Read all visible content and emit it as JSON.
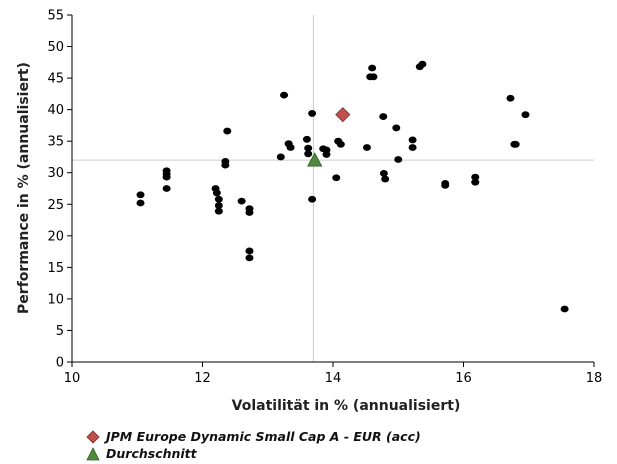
{
  "chart_data": {
    "type": "scatter",
    "xlabel": "Volatilität in % (annualisiert)",
    "ylabel": "Performance in % (annualisiert)",
    "xlim": [
      10,
      18
    ],
    "ylim": [
      0,
      55
    ],
    "xticks": [
      10,
      12,
      14,
      16,
      18
    ],
    "yticks": [
      0,
      5,
      10,
      15,
      20,
      25,
      30,
      35,
      40,
      45,
      50,
      55
    ],
    "reference_lines": {
      "x": 13.7,
      "y": 32.0
    },
    "colors": {
      "peer": "#000000",
      "fund": "#c0504d",
      "average": "#4f8a3c",
      "refline": "#cccccc"
    },
    "series": [
      {
        "role": "peers",
        "marker": "circle",
        "points": [
          [
            11.05,
            26.5
          ],
          [
            11.05,
            25.2
          ],
          [
            11.45,
            30.3
          ],
          [
            11.45,
            29.8
          ],
          [
            11.45,
            29.3
          ],
          [
            11.45,
            27.5
          ],
          [
            12.2,
            27.5
          ],
          [
            12.22,
            26.8
          ],
          [
            12.25,
            25.8
          ],
          [
            12.25,
            24.8
          ],
          [
            12.25,
            23.9
          ],
          [
            12.35,
            31.8
          ],
          [
            12.35,
            31.2
          ],
          [
            12.38,
            36.6
          ],
          [
            12.6,
            25.5
          ],
          [
            12.72,
            24.3
          ],
          [
            12.72,
            23.7
          ],
          [
            12.72,
            17.6
          ],
          [
            12.72,
            16.5
          ],
          [
            13.2,
            32.5
          ],
          [
            13.25,
            42.3
          ],
          [
            13.32,
            34.6
          ],
          [
            13.35,
            34.0
          ],
          [
            13.6,
            35.3
          ],
          [
            13.62,
            33.9
          ],
          [
            13.62,
            33.0
          ],
          [
            13.68,
            39.4
          ],
          [
            13.68,
            25.8
          ],
          [
            13.85,
            33.8
          ],
          [
            13.9,
            32.9
          ],
          [
            13.9,
            33.6
          ],
          [
            14.05,
            29.2
          ],
          [
            14.08,
            35.0
          ],
          [
            14.12,
            34.5
          ],
          [
            14.52,
            34.0
          ],
          [
            14.57,
            45.2
          ],
          [
            14.6,
            46.6
          ],
          [
            14.62,
            45.2
          ],
          [
            14.77,
            38.9
          ],
          [
            14.78,
            29.9
          ],
          [
            14.8,
            29.0
          ],
          [
            14.97,
            37.1
          ],
          [
            15.0,
            32.1
          ],
          [
            15.22,
            35.2
          ],
          [
            15.22,
            34.0
          ],
          [
            15.33,
            46.8
          ],
          [
            15.37,
            47.2
          ],
          [
            15.72,
            28.0
          ],
          [
            15.72,
            28.3
          ],
          [
            16.18,
            29.3
          ],
          [
            16.18,
            28.5
          ],
          [
            16.72,
            41.8
          ],
          [
            16.78,
            34.5
          ],
          [
            16.8,
            34.5
          ],
          [
            16.95,
            39.2
          ],
          [
            17.55,
            8.4
          ]
        ]
      },
      {
        "role": "fund",
        "marker": "diamond",
        "name": "JPM Europe Dynamic Small Cap A - EUR (acc)",
        "points": [
          [
            14.15,
            39.2
          ]
        ]
      },
      {
        "role": "average",
        "marker": "triangle",
        "name": "Durchschnitt",
        "points": [
          [
            13.72,
            32.0
          ]
        ]
      }
    ]
  }
}
